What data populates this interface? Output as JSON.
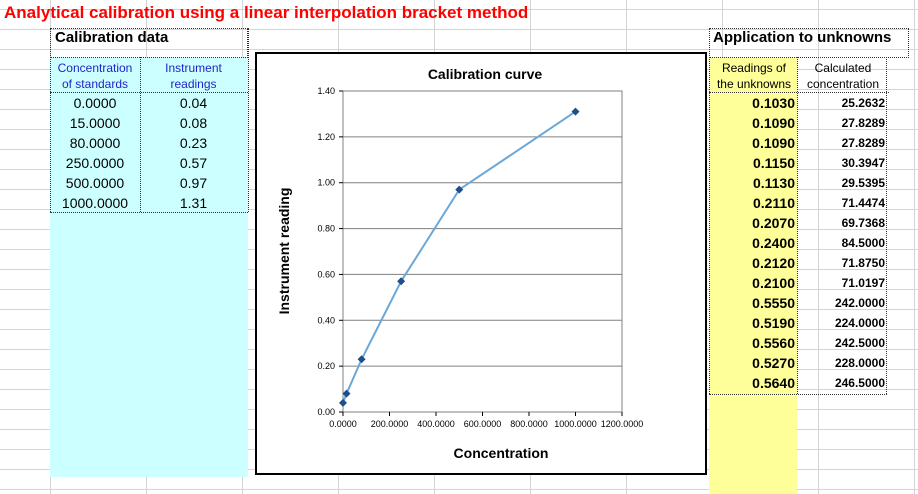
{
  "title": "Analytical calibration using a linear interpolation bracket method",
  "calibration": {
    "section_label": "Calibration data",
    "col1_header": [
      "Concentration",
      "of standards"
    ],
    "col2_header": [
      "Instrument",
      "readings"
    ],
    "rows": [
      {
        "conc": "0.0000",
        "reading": "0.04"
      },
      {
        "conc": "15.0000",
        "reading": "0.08"
      },
      {
        "conc": "80.0000",
        "reading": "0.23"
      },
      {
        "conc": "250.0000",
        "reading": "0.57"
      },
      {
        "conc": "500.0000",
        "reading": "0.97"
      },
      {
        "conc": "1000.0000",
        "reading": "1.31"
      }
    ]
  },
  "unknowns": {
    "section_label": "Application to unknowns",
    "col1_header": [
      "Readings of",
      "the unknowns"
    ],
    "col2_header": [
      "Calculated",
      "concentration"
    ],
    "rows": [
      {
        "reading": "0.1030",
        "conc": "25.2632"
      },
      {
        "reading": "0.1090",
        "conc": "27.8289"
      },
      {
        "reading": "0.1090",
        "conc": "27.8289"
      },
      {
        "reading": "0.1150",
        "conc": "30.3947"
      },
      {
        "reading": "0.1130",
        "conc": "29.5395"
      },
      {
        "reading": "0.2110",
        "conc": "71.4474"
      },
      {
        "reading": "0.2070",
        "conc": "69.7368"
      },
      {
        "reading": "0.2400",
        "conc": "84.5000"
      },
      {
        "reading": "0.2120",
        "conc": "71.8750"
      },
      {
        "reading": "0.2100",
        "conc": "71.0197"
      },
      {
        "reading": "0.5550",
        "conc": "242.0000"
      },
      {
        "reading": "0.5190",
        "conc": "224.0000"
      },
      {
        "reading": "0.5560",
        "conc": "242.5000"
      },
      {
        "reading": "0.5270",
        "conc": "228.0000"
      },
      {
        "reading": "0.5640",
        "conc": "246.5000"
      }
    ]
  },
  "colors": {
    "title": "#ff0000",
    "calibration_fill": "#ccffff",
    "unknowns_fill": "#ffff99",
    "series_line": "#6aa8d8",
    "series_marker": "#1f4e8c"
  },
  "chart_data": {
    "type": "line",
    "title": "Calibration curve",
    "xlabel": "Concentration",
    "ylabel": "Instrument reading",
    "xlim": [
      0,
      1200
    ],
    "ylim": [
      0,
      1.4
    ],
    "x_ticks": [
      "0.0000",
      "200.0000",
      "400.0000",
      "600.0000",
      "800.0000",
      "1000.0000",
      "1200.0000"
    ],
    "y_ticks": [
      "0.00",
      "0.20",
      "0.40",
      "0.60",
      "0.80",
      "1.00",
      "1.20",
      "1.40"
    ],
    "grid": "horizontal",
    "legend": "none",
    "series": [
      {
        "x": [
          0,
          15,
          80,
          250,
          500,
          1000
        ],
        "y": [
          0.04,
          0.08,
          0.23,
          0.57,
          0.97,
          1.31
        ]
      }
    ]
  }
}
